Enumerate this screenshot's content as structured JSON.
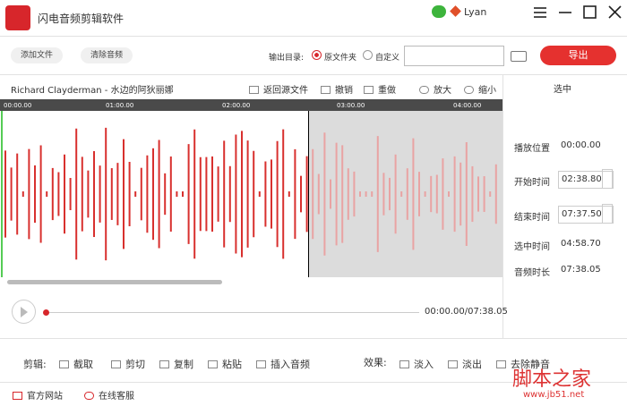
{
  "app": {
    "title": "闪电音频剪辑软件",
    "user": "Lyan"
  },
  "toolbar": {
    "add_file": "添加文件",
    "clear_audio": "清除音频",
    "output_dir_label": "输出目录:",
    "option_source": "原文件夹",
    "option_custom": "自定义",
    "export": "导出"
  },
  "track": {
    "name": "Richard Clayderman - 水边的阿狄丽娜",
    "actions": [
      "返回源文件",
      "撤销",
      "重做",
      "放大",
      "缩小"
    ]
  },
  "timeline": {
    "ticks": [
      "00:00.00",
      "01:00.00",
      "02:00.00",
      "03:00.00",
      "04:00.00"
    ]
  },
  "panel": {
    "header": "选中",
    "rows": [
      {
        "label": "播放位置",
        "value": "00:00.00"
      },
      {
        "label": "开始时间",
        "value": "02:38.80"
      },
      {
        "label": "结束时间",
        "value": "07:37.50"
      },
      {
        "label": "选中时间",
        "value": "04:58.70"
      },
      {
        "label": "音频时长",
        "value": "07:38.05"
      }
    ]
  },
  "player": {
    "time": "00:00.00/07:38.05"
  },
  "edit": {
    "label": "剪辑:",
    "tools": [
      "截取",
      "剪切",
      "复制",
      "粘贴",
      "插入音频"
    ]
  },
  "effects": {
    "label": "效果:",
    "tools": [
      "淡入",
      "淡出",
      "去除静音"
    ]
  },
  "footer": {
    "links": [
      "官方网站",
      "在线客服"
    ]
  },
  "watermark": {
    "title": "脚本之家",
    "url": "www.jb51.net"
  }
}
